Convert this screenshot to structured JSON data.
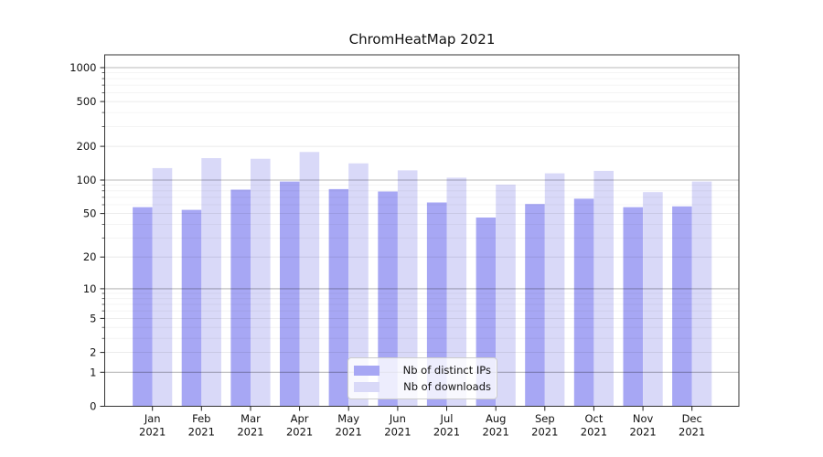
{
  "chart_data": {
    "type": "bar",
    "title": "ChromHeatMap 2021",
    "categories": [
      "Jan\n2021",
      "Feb\n2021",
      "Mar\n2021",
      "Apr\n2021",
      "May\n2021",
      "Jun\n2021",
      "Jul\n2021",
      "Aug\n2021",
      "Sep\n2021",
      "Oct\n2021",
      "Nov\n2021",
      "Dec\n2021"
    ],
    "series": [
      {
        "name": "Nb of distinct IPs",
        "color": "#a7a7f4",
        "values": [
          57,
          54,
          82,
          97,
          83,
          79,
          63,
          46,
          61,
          68,
          57,
          58
        ]
      },
      {
        "name": "Nb of downloads",
        "color": "#d9d9f8",
        "values": [
          128,
          157,
          155,
          178,
          141,
          122,
          105,
          91,
          115,
          121,
          78,
          97
        ]
      }
    ],
    "xlabel": "",
    "ylabel": "",
    "ylim": [
      0,
      1000
    ],
    "y_scale": "log-like (log10(value+1))",
    "y_ticks": [
      0,
      1,
      2,
      5,
      10,
      20,
      50,
      100,
      200,
      500,
      1000
    ],
    "y_minor_ticks": [
      3,
      4,
      6,
      7,
      8,
      9,
      30,
      40,
      60,
      70,
      80,
      90,
      300,
      400,
      600,
      700,
      800,
      900
    ],
    "grid": "horizontal major + minor",
    "legend_position": "lower center (inside plot)",
    "colors": {
      "decade_gridline": "rgba(0,0,0,0.28)",
      "labeled_gridline": "rgba(0,0,0,0.10)",
      "minor_gridline": "rgba(0,0,0,0.06)",
      "frame": "#333333",
      "tick": "#222222",
      "background": "#ffffff"
    }
  }
}
